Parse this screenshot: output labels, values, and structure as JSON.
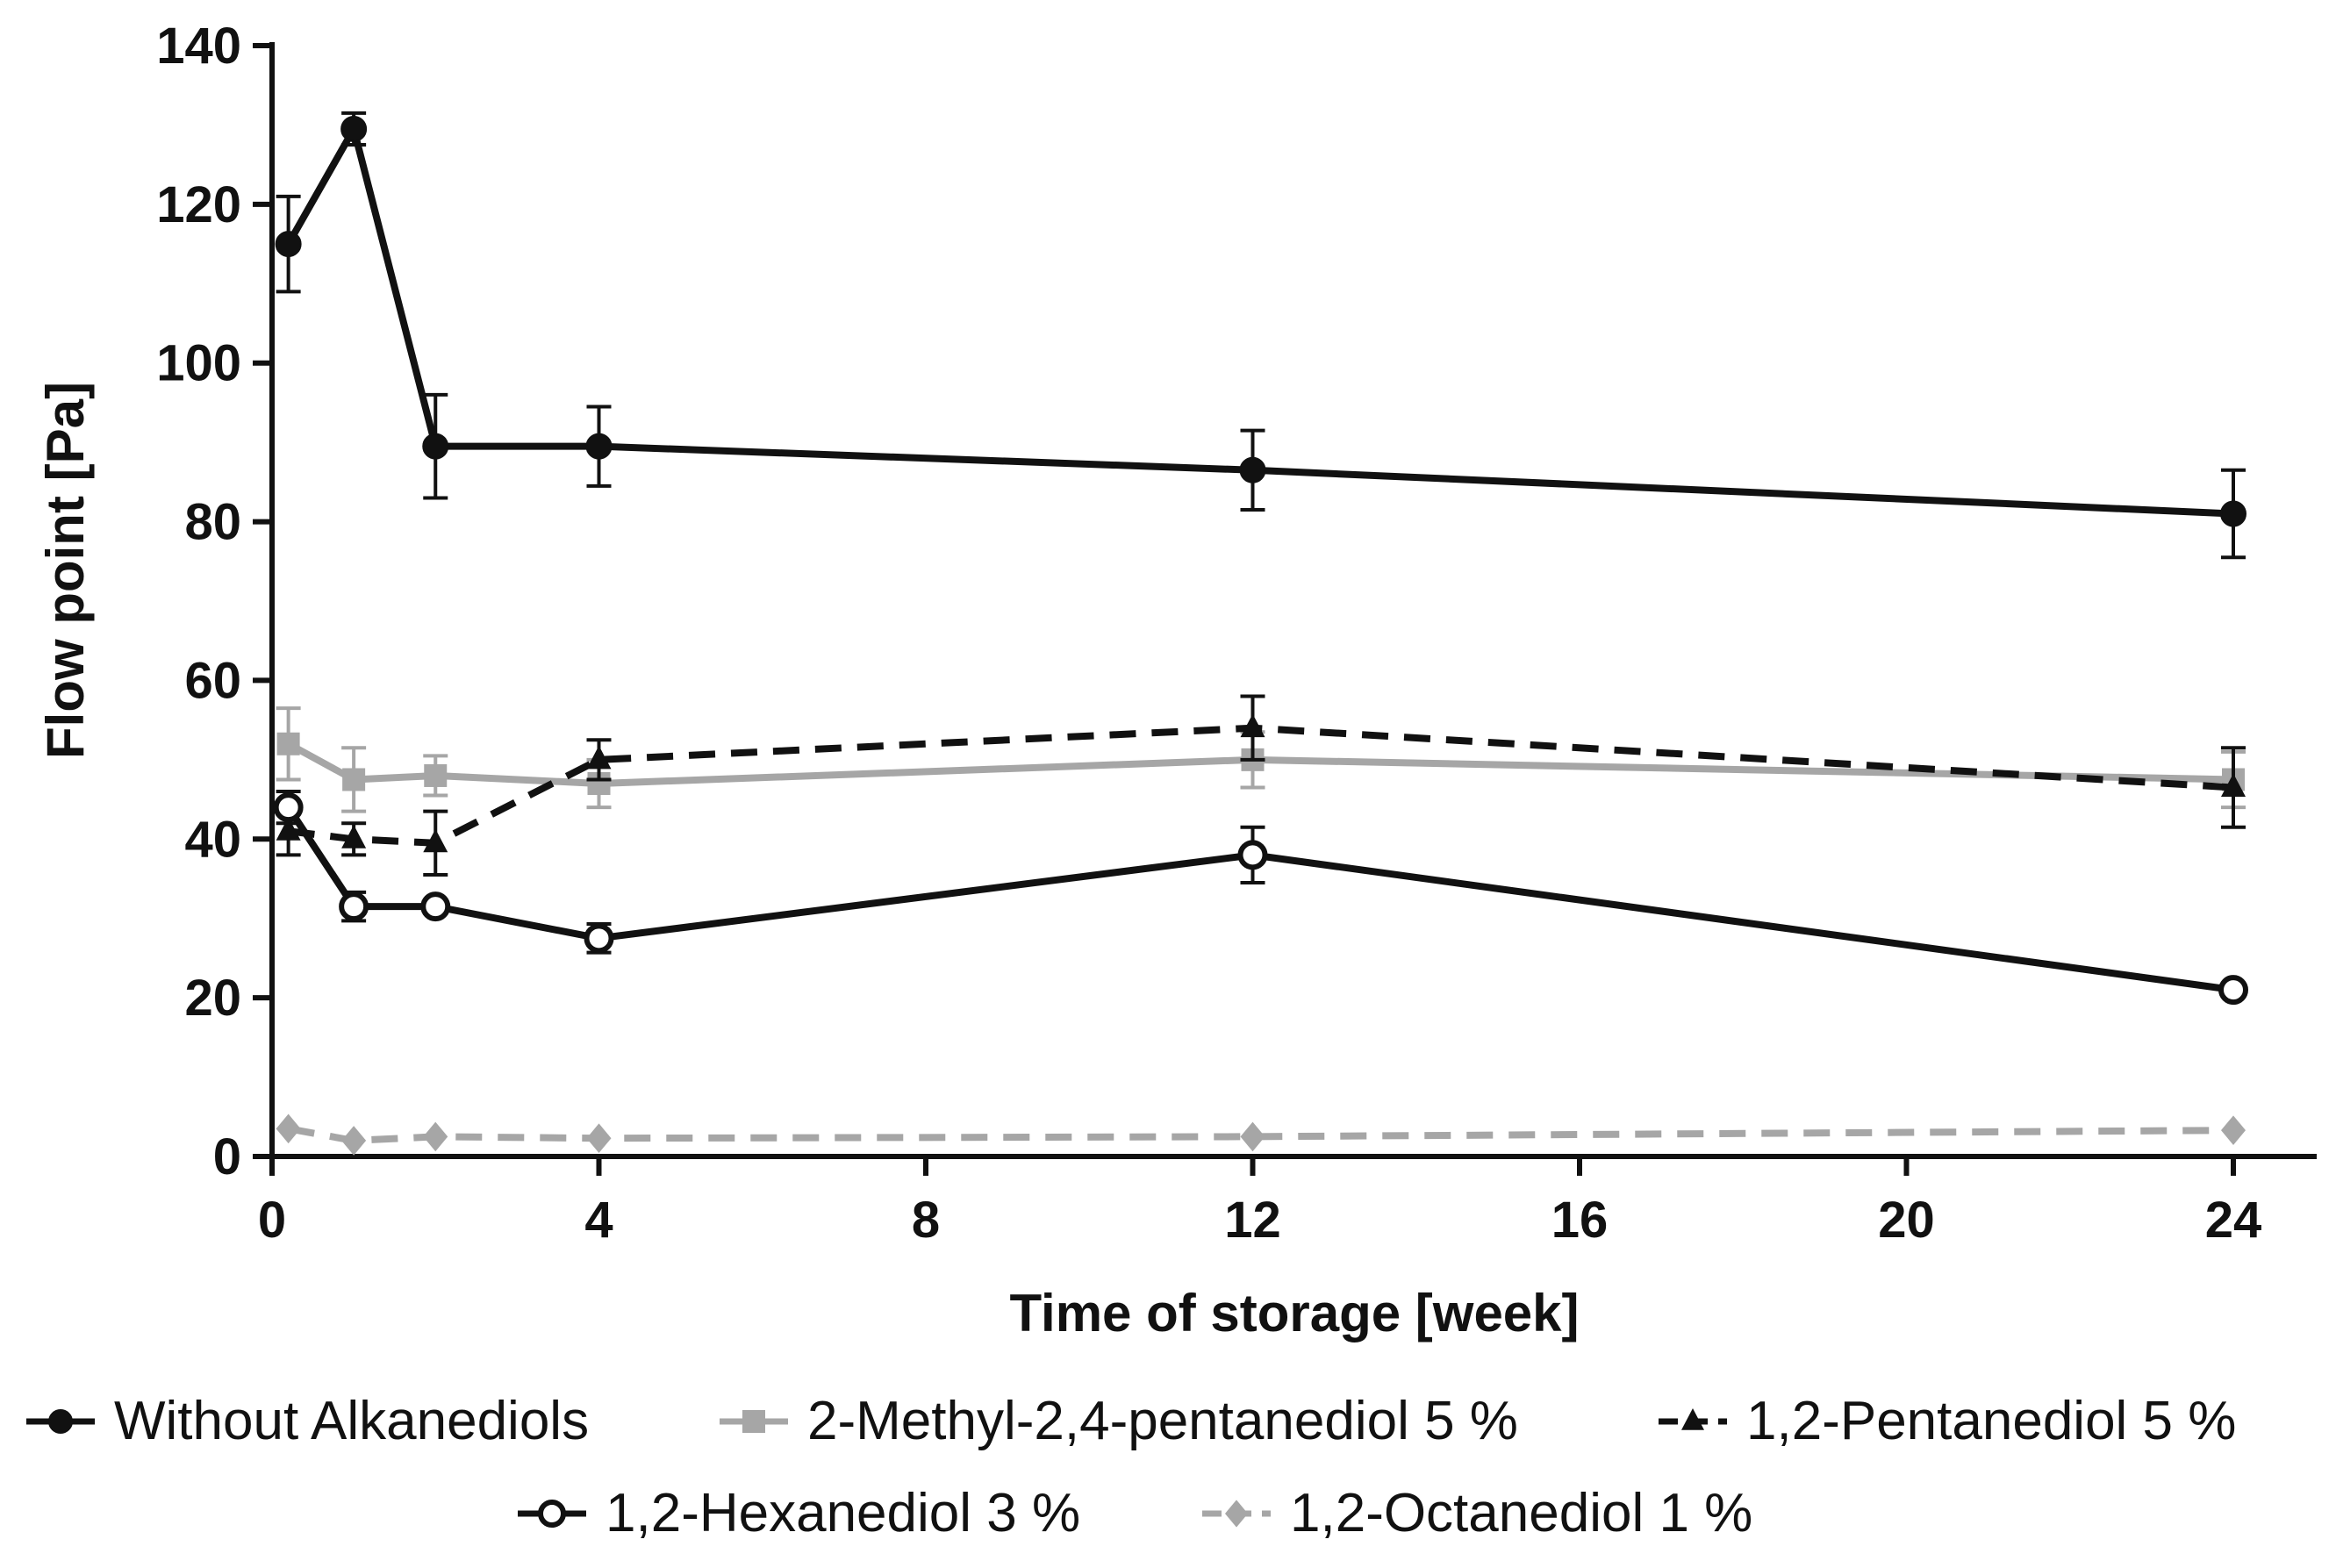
{
  "chart_data": {
    "type": "line",
    "title": "",
    "xlabel": "Time of storage [week]",
    "ylabel": "Flow point [Pa]",
    "xlim": [
      0,
      25
    ],
    "ylim": [
      0,
      140
    ],
    "xticks": [
      0,
      4,
      8,
      12,
      16,
      20,
      24
    ],
    "yticks": [
      0,
      20,
      40,
      60,
      80,
      100,
      120,
      140
    ],
    "x_tick_labels": [
      "0",
      "4",
      "8",
      "12",
      "16",
      "20",
      "24"
    ],
    "y_tick_labels": [
      "0",
      "20",
      "40",
      "60",
      "80",
      "100",
      "120",
      "140"
    ],
    "grid": false,
    "legend_position": "bottom",
    "series": [
      {
        "name": "Without Alkanediols",
        "color": "#111111",
        "line_style": "solid",
        "marker": "circle-filled",
        "x": [
          0.2,
          1,
          2,
          4,
          12,
          24
        ],
        "y": [
          115,
          129.5,
          89.5,
          89.5,
          86.5,
          81
        ],
        "err": [
          6,
          2,
          6.5,
          5,
          5,
          5.5
        ]
      },
      {
        "name": "2-Methyl-2,4-pentanediol 5 %",
        "color": "#a6a6a6",
        "line_style": "solid",
        "marker": "square",
        "x": [
          0.2,
          1,
          2,
          4,
          12,
          24
        ],
        "y": [
          52,
          47.5,
          48,
          47,
          50,
          47.5
        ],
        "err": [
          4.5,
          4,
          2.5,
          3,
          3.5,
          3.5
        ]
      },
      {
        "name": "1,2-Pentanediol 5 %",
        "color": "#111111",
        "line_style": "dashed",
        "marker": "triangle",
        "x": [
          0.2,
          1,
          2,
          4,
          12,
          24
        ],
        "y": [
          41,
          40,
          39.5,
          50,
          54,
          46.5
        ],
        "err": [
          3,
          2,
          4,
          2.5,
          4,
          5
        ]
      },
      {
        "name": "1,2-Hexanediol 3 %",
        "color": "#111111",
        "line_style": "solid",
        "marker": "circle-open",
        "x": [
          0.2,
          1,
          2,
          4,
          12,
          24
        ],
        "y": [
          44,
          31.5,
          31.5,
          27.5,
          38,
          21
        ],
        "err": [
          2,
          1.8,
          0,
          1.8,
          3.5,
          0
        ]
      },
      {
        "name": "1,2-Octanediol 1 %",
        "color": "#a6a6a6",
        "line_style": "dashed",
        "marker": "diamond",
        "x": [
          0.2,
          1,
          2,
          4,
          12,
          24
        ],
        "y": [
          3.5,
          2,
          2.5,
          2.3,
          2.5,
          3.3
        ],
        "err": [
          0,
          0,
          0,
          0,
          0,
          0
        ]
      }
    ]
  }
}
